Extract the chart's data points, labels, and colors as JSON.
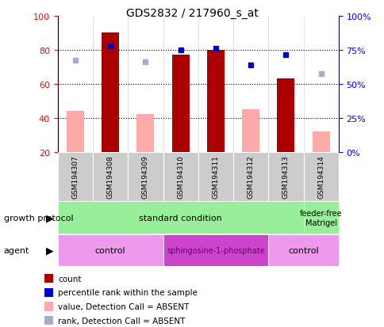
{
  "title": "GDS2832 / 217960_s_at",
  "samples": [
    "GSM194307",
    "GSM194308",
    "GSM194309",
    "GSM194310",
    "GSM194311",
    "GSM194312",
    "GSM194313",
    "GSM194314"
  ],
  "count_values": [
    null,
    90,
    null,
    77,
    80,
    null,
    63,
    null
  ],
  "count_absent": [
    44,
    null,
    42,
    null,
    null,
    45,
    null,
    32
  ],
  "percentile_rank": [
    null,
    82,
    null,
    80,
    81,
    71,
    77,
    null
  ],
  "percentile_absent": [
    74,
    null,
    73,
    null,
    null,
    null,
    null,
    66
  ],
  "ylim_left": [
    20,
    100
  ],
  "ylim_right": [
    0,
    100
  ],
  "yticks_left": [
    20,
    40,
    60,
    80,
    100
  ],
  "yticks_right": [
    0,
    25,
    50,
    75,
    100
  ],
  "ytick_right_labels": [
    "0%",
    "25%",
    "50%",
    "75%",
    "100%"
  ],
  "bar_color_red": "#aa0000",
  "bar_color_pink": "#ffaaaa",
  "dot_color_blue": "#0000cc",
  "dot_color_lightblue": "#aaaacc",
  "growth_protocol_groups": [
    {
      "label": "standard condition",
      "start": 0,
      "end": 7,
      "color": "#99ee99"
    },
    {
      "label": "feeder-free\nMatrigel",
      "start": 7,
      "end": 8,
      "color": "#99ee99"
    }
  ],
  "agent_groups": [
    {
      "label": "control",
      "start": 0,
      "end": 3,
      "color": "#ee99ee"
    },
    {
      "label": "sphingosine-1-phosphate",
      "start": 3,
      "end": 6,
      "color": "#cc44cc"
    },
    {
      "label": "control",
      "start": 6,
      "end": 8,
      "color": "#ee99ee"
    }
  ],
  "legend_items": [
    {
      "color": "#aa0000",
      "label": "count"
    },
    {
      "color": "#0000cc",
      "label": "percentile rank within the sample"
    },
    {
      "color": "#ffaaaa",
      "label": "value, Detection Call = ABSENT"
    },
    {
      "color": "#aaaacc",
      "label": "rank, Detection Call = ABSENT"
    }
  ],
  "fig_width": 4.85,
  "fig_height": 4.14,
  "dpi": 100
}
